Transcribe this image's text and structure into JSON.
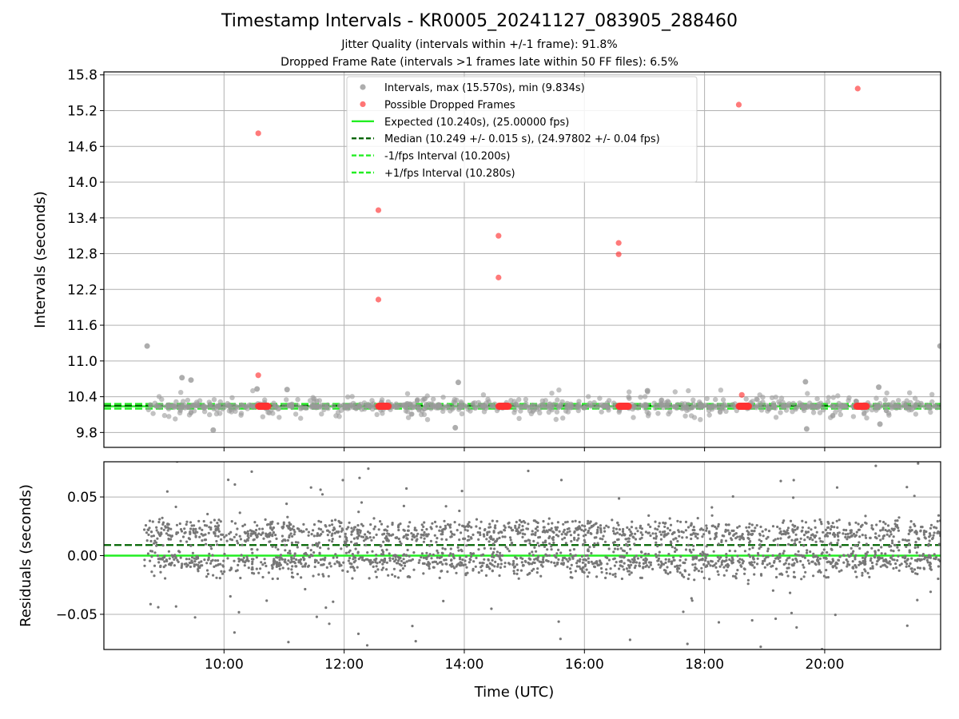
{
  "chart_data": {
    "type": "scatter",
    "title": "Timestamp Intervals - KR0005_20241127_083905_288460",
    "subtitles": [
      "Jitter Quality (intervals within +/-1 frame): 91.8%",
      "Dropped Frame Rate (intervals >1 frames late within 50 FF files): 6.5%"
    ],
    "xlabel": "Time (UTC)",
    "x_tick_labels": [
      "10:00",
      "12:00",
      "14:00",
      "16:00",
      "18:00",
      "20:00"
    ],
    "x_ticks_hours": [
      10,
      12,
      14,
      16,
      18,
      20
    ],
    "xlim_hours": [
      8.0,
      21.93
    ],
    "top_panel": {
      "ylabel": "Intervals (seconds)",
      "ylim": [
        9.55,
        15.85
      ],
      "y_ticks": [
        9.8,
        10.4,
        11.0,
        11.6,
        12.2,
        12.8,
        13.4,
        14.0,
        14.6,
        15.2,
        15.8
      ],
      "y_tick_labels": [
        "9.8",
        "10.4",
        "11.0",
        "11.6",
        "12.2",
        "12.8",
        "13.4",
        "14.0",
        "14.6",
        "15.2",
        "15.8"
      ],
      "grid": true,
      "expected": 10.24,
      "median": 10.249,
      "minus_interval": 10.2,
      "plus_interval": 10.28,
      "legend": {
        "placement": "upper center",
        "entries": [
          {
            "label": "Intervals, max (15.570s), min (9.834s)",
            "color": "#999999",
            "style": "marker"
          },
          {
            "label": "Possible Dropped Frames",
            "color": "#ff6666",
            "style": "marker"
          },
          {
            "label": "Expected (10.240s), (25.00000 fps)",
            "color": "#22ee22",
            "style": "solid"
          },
          {
            "label": "Median (10.249 +/- 0.015 s), (24.97802 +/- 0.04 fps)",
            "color": "#006400",
            "style": "dashed"
          },
          {
            "label": "-1/fps Interval (10.200s)",
            "color": "#22ee22",
            "style": "dashed"
          },
          {
            "label": "+1/fps Interval (10.280s)",
            "color": "#22ee22",
            "style": "dashed"
          }
        ]
      },
      "outlier_intervals": [
        {
          "x": 8.72,
          "y": 11.25
        },
        {
          "x": 21.92,
          "y": 11.25
        },
        {
          "x": 9.3,
          "y": 10.72
        },
        {
          "x": 9.45,
          "y": 10.68
        },
        {
          "x": 9.82,
          "y": 9.84
        },
        {
          "x": 10.55,
          "y": 10.53
        },
        {
          "x": 11.05,
          "y": 10.52
        },
        {
          "x": 13.9,
          "y": 10.64
        },
        {
          "x": 13.85,
          "y": 9.88
        },
        {
          "x": 17.05,
          "y": 10.5
        },
        {
          "x": 19.68,
          "y": 10.65
        },
        {
          "x": 19.7,
          "y": 9.86
        },
        {
          "x": 20.9,
          "y": 10.56
        },
        {
          "x": 20.92,
          "y": 9.94
        }
      ],
      "dropped_frames": [
        {
          "x": 10.57,
          "y": 14.82
        },
        {
          "x": 10.57,
          "y": 10.76
        },
        {
          "x": 12.57,
          "y": 13.53
        },
        {
          "x": 12.57,
          "y": 12.03
        },
        {
          "x": 14.57,
          "y": 13.1
        },
        {
          "x": 14.57,
          "y": 12.4
        },
        {
          "x": 16.57,
          "y": 12.98
        },
        {
          "x": 16.57,
          "y": 12.79
        },
        {
          "x": 18.57,
          "y": 15.3
        },
        {
          "x": 18.62,
          "y": 10.43
        },
        {
          "x": 20.55,
          "y": 15.57
        }
      ],
      "dropped_frame_clusters_x": [
        10.66,
        12.66,
        14.66,
        16.66,
        18.66,
        20.62
      ],
      "dropped_frame_cluster_y": 10.24,
      "bulk_band": {
        "x_start": 8.72,
        "x_end": 21.93,
        "y_center": 10.24
      }
    },
    "bottom_panel": {
      "ylabel": "Residuals (seconds)",
      "ylim": [
        -0.08,
        0.08
      ],
      "y_ticks": [
        -0.05,
        0.0,
        0.05
      ],
      "y_tick_labels": [
        "−0.05",
        "0.00",
        "0.05"
      ],
      "grid": true,
      "expected_residual": 0.0,
      "median_residual": 0.009,
      "residual_band": {
        "x_start": 8.67,
        "x_end": 21.93,
        "core_spread": 0.03,
        "outer_spread": 0.08
      }
    },
    "colors": {
      "intervals": "#999999",
      "dropped": "#ff3333",
      "expected": "#22ee22",
      "median": "#006400",
      "residuals": "#777777",
      "grid": "#b0b0b0"
    }
  }
}
